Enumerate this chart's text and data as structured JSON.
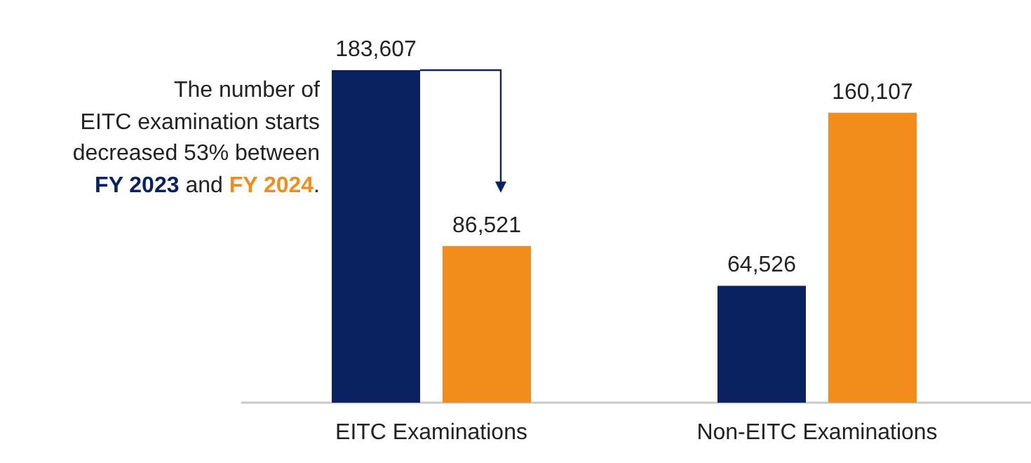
{
  "chart_data": {
    "type": "bar",
    "categories": [
      "EITC Examinations",
      "Non-EITC Examinations"
    ],
    "series": [
      {
        "name": "FY 2023",
        "color": "#0b2260",
        "values": [
          183607,
          64526
        ],
        "value_labels": [
          "183,607",
          "64,526"
        ]
      },
      {
        "name": "FY 2024",
        "color": "#f28c1a",
        "values": [
          86521,
          160107
        ],
        "value_labels": [
          "86,521",
          "160,107"
        ]
      }
    ],
    "legend": false,
    "annotations": [
      "The number of\nEITC examination starts\ndecreased 53% between",
      "and",
      "."
    ]
  }
}
